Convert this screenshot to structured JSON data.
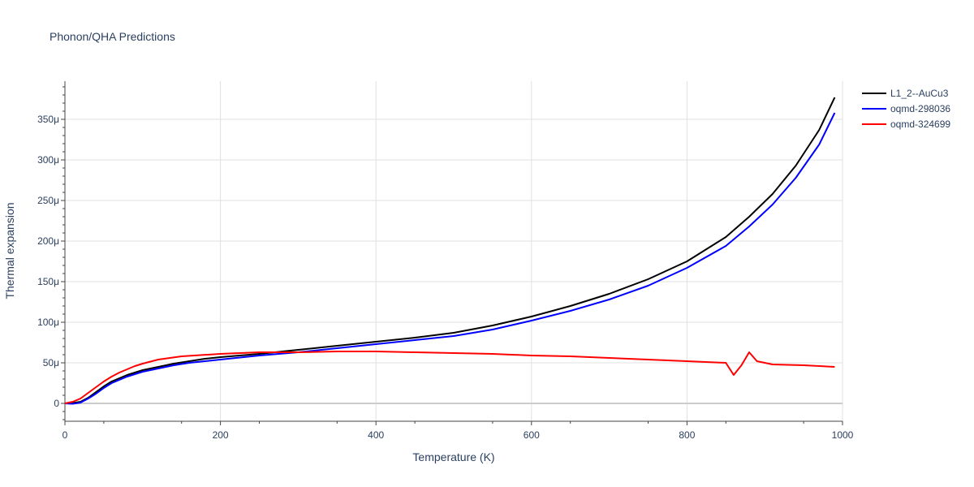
{
  "chart_data": {
    "type": "line",
    "title": "Phonon/QHA Predictions",
    "xlabel": "Temperature (K)",
    "ylabel": "Thermal expansion",
    "xlim": [
      0,
      1000
    ],
    "ylim": [
      -2.2e-05,
      0.000397
    ],
    "x_ticks": [
      0,
      200,
      400,
      600,
      800,
      1000
    ],
    "x_tick_labels": [
      "0",
      "200",
      "400",
      "600",
      "800",
      "1000"
    ],
    "y_ticks": [
      0,
      5e-05,
      0.0001,
      0.00015,
      0.0002,
      0.00025,
      0.0003,
      0.00035
    ],
    "y_tick_labels": [
      "0",
      "50μ",
      "100μ",
      "150μ",
      "200μ",
      "250μ",
      "300μ",
      "350μ"
    ],
    "grid": true,
    "legend_position": "top-right",
    "series": [
      {
        "name": "L1_2--AuCu3",
        "color": "#000000",
        "x": [
          0,
          10,
          20,
          30,
          40,
          50,
          60,
          70,
          80,
          90,
          100,
          120,
          140,
          160,
          180,
          200,
          250,
          300,
          350,
          400,
          450,
          500,
          550,
          600,
          650,
          700,
          750,
          800,
          850,
          880,
          910,
          940,
          970,
          990
        ],
        "y": [
          0,
          5e-07,
          2e-06,
          7e-06,
          1.4e-05,
          2.1e-05,
          2.7e-05,
          3.1e-05,
          3.5e-05,
          3.8e-05,
          4.1e-05,
          4.5e-05,
          4.9e-05,
          5.2e-05,
          5.5e-05,
          5.7e-05,
          6.1e-05,
          6.6e-05,
          7.1e-05,
          7.6e-05,
          8.1e-05,
          8.7e-05,
          9.6e-05,
          0.000107,
          0.00012,
          0.000135,
          0.000153,
          0.000175,
          0.000205,
          0.00023,
          0.000258,
          0.000293,
          0.000337,
          0.000377
        ]
      },
      {
        "name": "oqmd-298036",
        "color": "#0000ff",
        "x": [
          0,
          10,
          20,
          30,
          40,
          50,
          60,
          70,
          80,
          90,
          100,
          120,
          140,
          160,
          180,
          200,
          250,
          300,
          350,
          400,
          450,
          500,
          550,
          600,
          650,
          700,
          750,
          800,
          850,
          880,
          910,
          940,
          970,
          990
        ],
        "y": [
          0,
          -5e-07,
          1e-06,
          6e-06,
          1.2e-05,
          1.9e-05,
          2.5e-05,
          2.9e-05,
          3.3e-05,
          3.6e-05,
          3.9e-05,
          4.3e-05,
          4.7e-05,
          5e-05,
          5.2e-05,
          5.4e-05,
          5.9e-05,
          6.3e-05,
          6.8e-05,
          7.3e-05,
          7.8e-05,
          8.3e-05,
          9.1e-05,
          0.000102,
          0.000114,
          0.000128,
          0.000145,
          0.000167,
          0.000194,
          0.000218,
          0.000245,
          0.000278,
          0.000319,
          0.000358
        ]
      },
      {
        "name": "oqmd-324699",
        "color": "#ff0000",
        "x": [
          0,
          10,
          20,
          30,
          40,
          50,
          60,
          70,
          80,
          90,
          100,
          120,
          150,
          200,
          250,
          300,
          350,
          400,
          450,
          500,
          550,
          600,
          650,
          700,
          750,
          800,
          850,
          860,
          870,
          880,
          890,
          910,
          950,
          990
        ],
        "y": [
          0,
          2e-06,
          6e-06,
          1.3e-05,
          2e-05,
          2.7e-05,
          3.3e-05,
          3.8e-05,
          4.2e-05,
          4.6e-05,
          4.9e-05,
          5.4e-05,
          5.8e-05,
          6.1e-05,
          6.3e-05,
          6.3e-05,
          6.4e-05,
          6.4e-05,
          6.3e-05,
          6.2e-05,
          6.1e-05,
          5.9e-05,
          5.8e-05,
          5.6e-05,
          5.4e-05,
          5.2e-05,
          5e-05,
          3.5e-05,
          4.7e-05,
          6.3e-05,
          5.2e-05,
          4.8e-05,
          4.7e-05,
          4.5e-05
        ]
      }
    ]
  }
}
